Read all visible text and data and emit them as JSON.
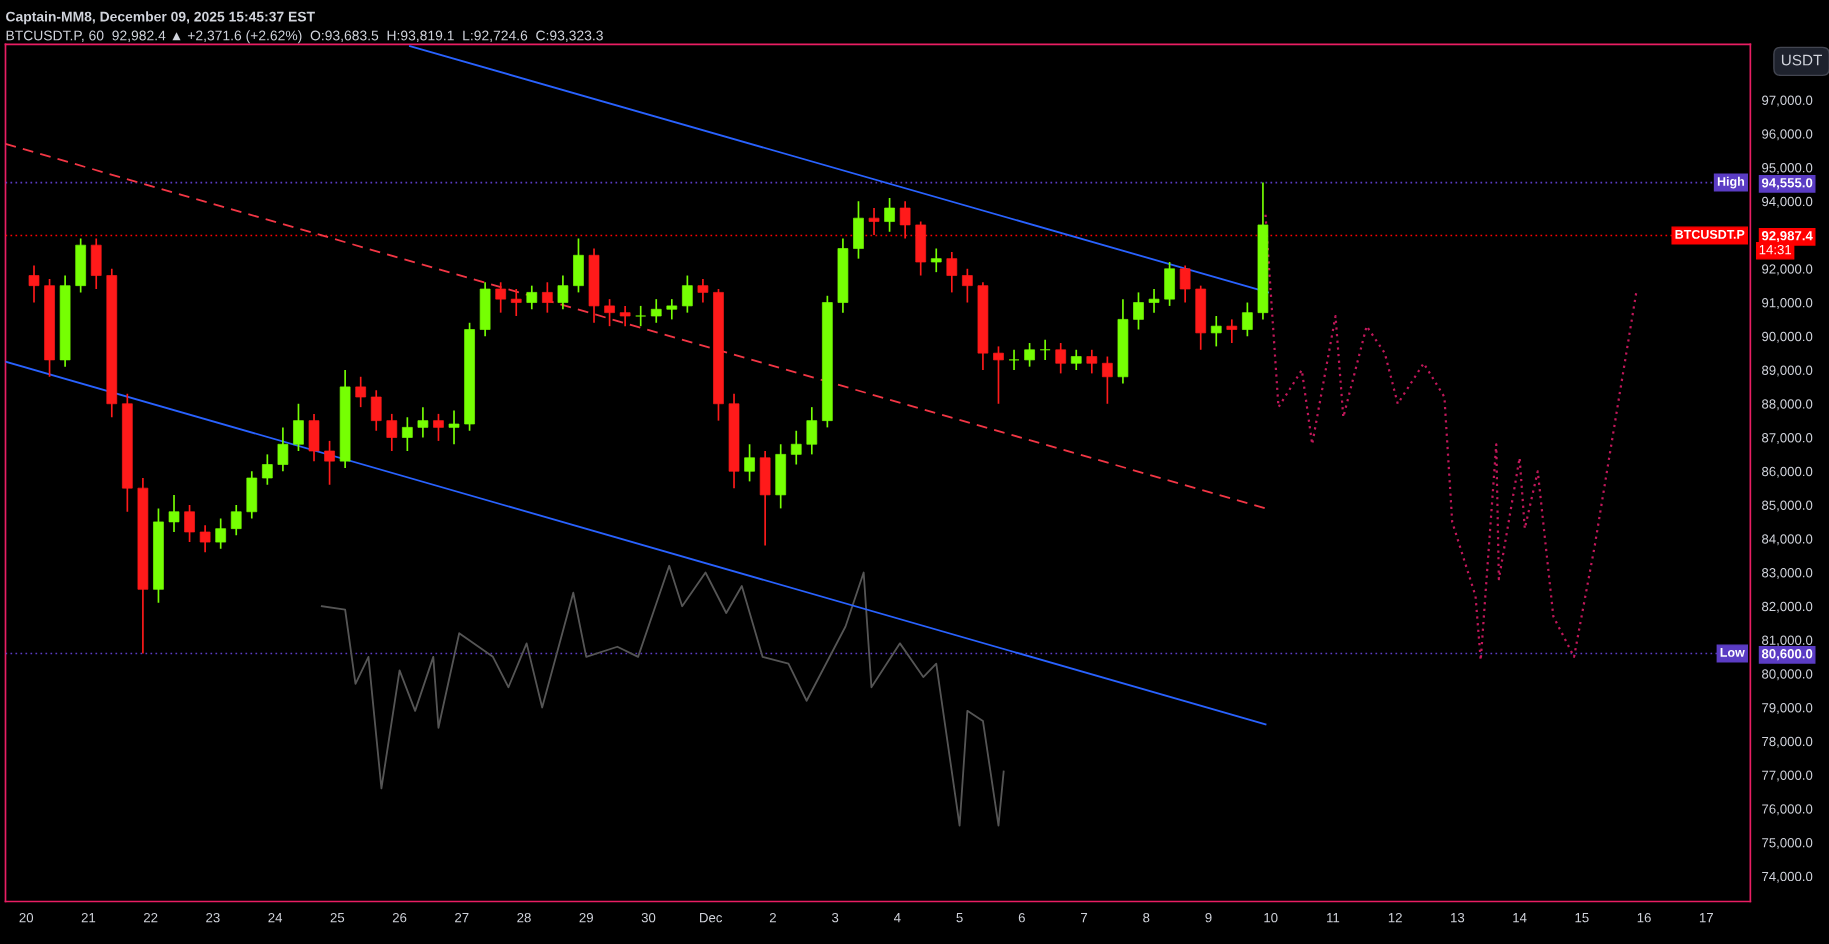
{
  "chart_data": {
    "type": "candlestick",
    "title": "Captain-MM8, December 09, 2025 15:45:37 EST",
    "subtitle": "BTCUSDT.P, 60  92,982.4 ▲ +2,371.6 (+2.62%)  O:93,683.5  H:93,819.1  L:92,724.6  C:93,323.3",
    "ylabel": "USDT",
    "x": [
      "2025-11-20T03:00",
      "2025-11-20T09:00",
      "2025-11-20T15:00",
      "2025-11-20T21:00",
      "2025-11-21T03:00",
      "2025-11-21T09:00",
      "2025-11-21T15:00",
      "2025-11-21T21:00",
      "2025-11-22T03:00",
      "2025-11-22T09:00",
      "2025-11-22T15:00",
      "2025-11-22T21:00",
      "2025-11-23T03:00",
      "2025-11-23T09:00",
      "2025-11-23T15:00",
      "2025-11-23T21:00",
      "2025-11-24T03:00",
      "2025-11-24T09:00",
      "2025-11-24T15:00",
      "2025-11-24T21:00",
      "2025-11-25T03:00",
      "2025-11-25T09:00",
      "2025-11-25T15:00",
      "2025-11-25T21:00",
      "2025-11-26T03:00",
      "2025-11-26T09:00",
      "2025-11-26T15:00",
      "2025-11-26T21:00",
      "2025-11-27T03:00",
      "2025-11-27T09:00",
      "2025-11-27T15:00",
      "2025-11-27T21:00",
      "2025-11-28T03:00",
      "2025-11-28T09:00",
      "2025-11-28T15:00",
      "2025-11-28T21:00",
      "2025-11-29T03:00",
      "2025-11-29T09:00",
      "2025-11-29T15:00",
      "2025-11-29T21:00",
      "2025-11-30T03:00",
      "2025-11-30T09:00",
      "2025-11-30T15:00",
      "2025-11-30T21:00",
      "2025-12-01T03:00",
      "2025-12-01T09:00",
      "2025-12-01T15:00",
      "2025-12-01T21:00",
      "2025-12-02T03:00",
      "2025-12-02T09:00",
      "2025-12-02T15:00",
      "2025-12-02T21:00",
      "2025-12-03T03:00",
      "2025-12-03T09:00",
      "2025-12-03T15:00",
      "2025-12-03T21:00",
      "2025-12-04T03:00",
      "2025-12-04T09:00",
      "2025-12-04T15:00",
      "2025-12-04T21:00",
      "2025-12-05T03:00",
      "2025-12-05T09:00",
      "2025-12-05T15:00",
      "2025-12-05T21:00",
      "2025-12-06T03:00",
      "2025-12-06T09:00",
      "2025-12-06T15:00",
      "2025-12-06T21:00",
      "2025-12-07T03:00",
      "2025-12-07T09:00",
      "2025-12-07T15:00",
      "2025-12-07T21:00",
      "2025-12-08T03:00",
      "2025-12-08T09:00",
      "2025-12-08T15:00",
      "2025-12-08T21:00",
      "2025-12-09T03:00",
      "2025-12-09T09:00",
      "2025-12-09T15:00",
      "2025-12-09T21:00"
    ],
    "ohlc": [
      [
        91800,
        92100,
        91000,
        91500
      ],
      [
        91500,
        91700,
        88800,
        89300
      ],
      [
        89300,
        91800,
        89100,
        91500
      ],
      [
        91500,
        92900,
        91300,
        92700
      ],
      [
        92700,
        92900,
        91400,
        91800
      ],
      [
        91800,
        92000,
        87600,
        88000
      ],
      [
        88000,
        88300,
        84800,
        85500
      ],
      [
        85500,
        85800,
        80600,
        82500
      ],
      [
        82500,
        84900,
        82100,
        84500
      ],
      [
        84500,
        85300,
        84200,
        84800
      ],
      [
        84800,
        85000,
        83900,
        84200
      ],
      [
        84200,
        84400,
        83600,
        83900
      ],
      [
        83900,
        84600,
        83700,
        84300
      ],
      [
        84300,
        85000,
        84100,
        84800
      ],
      [
        84800,
        86000,
        84600,
        85800
      ],
      [
        85800,
        86500,
        85600,
        86200
      ],
      [
        86200,
        87300,
        86000,
        86800
      ],
      [
        86800,
        88000,
        86600,
        87500
      ],
      [
        87500,
        87700,
        86300,
        86600
      ],
      [
        86600,
        86900,
        85600,
        86300
      ],
      [
        86300,
        89000,
        86100,
        88500
      ],
      [
        88500,
        88800,
        87900,
        88200
      ],
      [
        88200,
        88400,
        87200,
        87500
      ],
      [
        87500,
        87700,
        86600,
        87000
      ],
      [
        87000,
        87600,
        86600,
        87300
      ],
      [
        87300,
        87900,
        87000,
        87500
      ],
      [
        87500,
        87700,
        86900,
        87300
      ],
      [
        87300,
        87800,
        86800,
        87400
      ],
      [
        87400,
        90400,
        87200,
        90200
      ],
      [
        90200,
        91600,
        90000,
        91400
      ],
      [
        91400,
        91600,
        90700,
        91100
      ],
      [
        91100,
        91400,
        90600,
        91000
      ],
      [
        91000,
        91500,
        90800,
        91300
      ],
      [
        91300,
        91600,
        90700,
        91000
      ],
      [
        91000,
        91800,
        90800,
        91500
      ],
      [
        91500,
        92900,
        91300,
        92400
      ],
      [
        92400,
        92600,
        90400,
        90900
      ],
      [
        90900,
        91100,
        90300,
        90700
      ],
      [
        90700,
        90900,
        90300,
        90600
      ],
      [
        90600,
        90900,
        90300,
        90600
      ],
      [
        90600,
        91100,
        90400,
        90800
      ],
      [
        90800,
        91100,
        90500,
        90900
      ],
      [
        90900,
        91800,
        90700,
        91500
      ],
      [
        91500,
        91700,
        91000,
        91300
      ],
      [
        91300,
        91400,
        87500,
        88000
      ],
      [
        88000,
        88300,
        85500,
        86000
      ],
      [
        86000,
        86800,
        85700,
        86400
      ],
      [
        86400,
        86600,
        83800,
        85300
      ],
      [
        85300,
        86800,
        84900,
        86500
      ],
      [
        86500,
        87200,
        86200,
        86800
      ],
      [
        86800,
        87900,
        86500,
        87500
      ],
      [
        87500,
        91200,
        87300,
        91000
      ],
      [
        91000,
        92900,
        90700,
        92600
      ],
      [
        92600,
        94000,
        92300,
        93500
      ],
      [
        93500,
        93800,
        93000,
        93400
      ],
      [
        93400,
        94100,
        93100,
        93800
      ],
      [
        93800,
        94000,
        92900,
        93300
      ],
      [
        93300,
        93400,
        91800,
        92200
      ],
      [
        92200,
        92600,
        91900,
        92300
      ],
      [
        92300,
        92500,
        91300,
        91800
      ],
      [
        91800,
        92000,
        91000,
        91500
      ],
      [
        91500,
        91600,
        89000,
        89500
      ],
      [
        89500,
        89700,
        88000,
        89300
      ],
      [
        89300,
        89600,
        89000,
        89300
      ],
      [
        89300,
        89800,
        89100,
        89600
      ],
      [
        89600,
        89900,
        89300,
        89600
      ],
      [
        89600,
        89800,
        88900,
        89200
      ],
      [
        89200,
        89600,
        89000,
        89400
      ],
      [
        89400,
        89600,
        88900,
        89200
      ],
      [
        89200,
        89400,
        88000,
        88800
      ],
      [
        88800,
        91100,
        88600,
        90500
      ],
      [
        90500,
        91300,
        90200,
        91000
      ],
      [
        91000,
        91400,
        90700,
        91100
      ],
      [
        91100,
        92200,
        90900,
        92000
      ],
      [
        92000,
        92100,
        91000,
        91400
      ],
      [
        91400,
        91500,
        89600,
        90100
      ],
      [
        90100,
        90600,
        89700,
        90300
      ],
      [
        90300,
        90500,
        89800,
        90200
      ],
      [
        90200,
        91000,
        90000,
        90700
      ],
      [
        90700,
        94555,
        90500,
        93300
      ]
    ],
    "colors": [
      "#ff1a1a",
      "#ff1a1a",
      "#76ff03",
      "#76ff03",
      "#ff1a1a",
      "#ff1a1a",
      "#ff1a1a",
      "#ff1a1a",
      "#76ff03",
      "#76ff03",
      "#ff1a1a",
      "#ff1a1a",
      "#76ff03",
      "#76ff03",
      "#76ff03",
      "#76ff03",
      "#76ff03",
      "#76ff03",
      "#ff1a1a",
      "#ff1a1a",
      "#76ff03",
      "#ff1a1a",
      "#ff1a1a",
      "#ff1a1a",
      "#76ff03",
      "#76ff03",
      "#ff1a1a",
      "#76ff03",
      "#76ff03",
      "#76ff03",
      "#ff1a1a",
      "#ff1a1a",
      "#76ff03",
      "#ff1a1a",
      "#76ff03",
      "#76ff03",
      "#ff1a1a",
      "#ff1a1a",
      "#ff1a1a",
      "#76ff03",
      "#76ff03",
      "#76ff03",
      "#76ff03",
      "#ff1a1a",
      "#ff1a1a",
      "#ff1a1a",
      "#76ff03",
      "#ff1a1a",
      "#76ff03",
      "#76ff03",
      "#76ff03",
      "#76ff03",
      "#76ff03",
      "#76ff03",
      "#ff1a1a",
      "#76ff03",
      "#ff1a1a",
      "#ff1a1a",
      "#76ff03",
      "#ff1a1a",
      "#ff1a1a",
      "#ff1a1a",
      "#ff1a1a",
      "#76ff03",
      "#76ff03",
      "#76ff03",
      "#ff1a1a",
      "#76ff03",
      "#ff1a1a",
      "#ff1a1a",
      "#76ff03",
      "#76ff03",
      "#76ff03",
      "#76ff03",
      "#ff1a1a",
      "#ff1a1a",
      "#76ff03",
      "#ff1a1a",
      "#76ff03",
      "#76ff03"
    ],
    "series": [
      {
        "type": "line",
        "color": "#555555",
        "line_style": "solid",
        "x": [
          "2025-11-24T18:00",
          "2025-11-25T03:00",
          "2025-11-25T07:00",
          "2025-11-25T12:00",
          "2025-11-25T17:00",
          "2025-11-26T00:00",
          "2025-11-26T06:00",
          "2025-11-26T13:00",
          "2025-11-26T15:00",
          "2025-11-26T23:00",
          "2025-11-27T12:00",
          "2025-11-27T18:00",
          "2025-11-28T01:00",
          "2025-11-28T07:00",
          "2025-11-28T19:00",
          "2025-11-29T00:00",
          "2025-11-29T12:00",
          "2025-11-29T20:00",
          "2025-11-30T08:00",
          "2025-11-30T13:00",
          "2025-11-30T22:00",
          "2025-12-01T06:00",
          "2025-12-01T12:00",
          "2025-12-01T20:00",
          "2025-12-02T06:00",
          "2025-12-02T13:00",
          "2025-12-03T04:00",
          "2025-12-03T11:00",
          "2025-12-03T14:00",
          "2025-12-04T01:00",
          "2025-12-04T10:00",
          "2025-12-04T15:00",
          "2025-12-05T00:00",
          "2025-12-05T03:00",
          "2025-12-05T09:00",
          "2025-12-05T15:00",
          "2025-12-05T17:00"
        ],
        "values": [
          82000,
          81900,
          79700,
          80500,
          76600,
          80100,
          78900,
          80500,
          78400,
          81200,
          80500,
          79600,
          80900,
          79000,
          82400,
          80500,
          80800,
          80500,
          83200,
          82000,
          83000,
          81800,
          82600,
          80500,
          80300,
          79200,
          81400,
          83000,
          79600,
          80900,
          79900,
          80300,
          75500,
          78900,
          78600,
          75500,
          77100
        ]
      },
      {
        "type": "line",
        "color": "#c2185b",
        "line_style": "dotted",
        "x": [
          "2025-12-09T22:00",
          "2025-12-10T03:00",
          "2025-12-10T12:00",
          "2025-12-10T16:00",
          "2025-12-11T01:00",
          "2025-12-11T04:00",
          "2025-12-11T13:00",
          "2025-12-11T20:00",
          "2025-12-12T01:00",
          "2025-12-12T11:00",
          "2025-12-12T19:00",
          "2025-12-12T22:00",
          "2025-12-13T07:00",
          "2025-12-13T09:00",
          "2025-12-13T15:00",
          "2025-12-13T16:00",
          "2025-12-14T00:00",
          "2025-12-14T02:00",
          "2025-12-14T07:00",
          "2025-12-14T13:00",
          "2025-12-14T21:00",
          "2025-12-15T05:00",
          "2025-12-15T21:00"
        ],
        "values": [
          93600,
          87900,
          89000,
          86800,
          90600,
          87600,
          90300,
          89500,
          88000,
          89200,
          88200,
          84500,
          82300,
          80400,
          86800,
          82800,
          86400,
          84300,
          86000,
          81700,
          80500,
          83800,
          91300
        ]
      },
      {
        "type": "line",
        "color": "#2962ff",
        "line_style": "solid",
        "x": [
          "2025-11-26T04:00",
          "2025-12-09T23:00"
        ],
        "values": [
          98600,
          91300
        ]
      },
      {
        "type": "line",
        "color": "#2962ff",
        "line_style": "solid",
        "x": [
          "2025-11-19T16:00",
          "2025-12-09T22:00"
        ],
        "values": [
          89250,
          78500
        ]
      },
      {
        "type": "line",
        "color": "#f23645",
        "line_style": "dashed",
        "x": [
          "2025-11-19T16:00",
          "2025-12-09T22:00"
        ],
        "values": [
          95700,
          84900
        ]
      }
    ],
    "ref_lines": [
      {
        "axis": "y",
        "value": 94555,
        "label": "High",
        "color": "#5b3cc4",
        "line_style": "dotted"
      },
      {
        "axis": "y",
        "value": 80600,
        "label": "Low",
        "color": "#5b3cc4",
        "line_style": "dotted"
      },
      {
        "axis": "y",
        "value": 92987.4,
        "label": "BTCUSDT.P",
        "color": "#ff0000",
        "line_style": "dotted"
      }
    ],
    "annotations": [
      "14:31"
    ],
    "xlim": [
      "2025-11-19T16:00",
      "2025-12-17T17:00"
    ],
    "xticks": [
      {
        "value": "2025-11-20",
        "label": "20"
      },
      {
        "value": "2025-11-21",
        "label": "21"
      },
      {
        "value": "2025-11-22",
        "label": "22"
      },
      {
        "value": "2025-11-23",
        "label": "23"
      },
      {
        "value": "2025-11-24",
        "label": "24"
      },
      {
        "value": "2025-11-25",
        "label": "25"
      },
      {
        "value": "2025-11-26",
        "label": "26"
      },
      {
        "value": "2025-11-27",
        "label": "27"
      },
      {
        "value": "2025-11-28",
        "label": "28"
      },
      {
        "value": "2025-11-29",
        "label": "29"
      },
      {
        "value": "2025-11-30",
        "label": "30"
      },
      {
        "value": "2025-12-01",
        "label": "Dec"
      },
      {
        "value": "2025-12-02",
        "label": "2"
      },
      {
        "value": "2025-12-03",
        "label": "3"
      },
      {
        "value": "2025-12-04",
        "label": "4"
      },
      {
        "value": "2025-12-05",
        "label": "5"
      },
      {
        "value": "2025-12-06",
        "label": "6"
      },
      {
        "value": "2025-12-07",
        "label": "7"
      },
      {
        "value": "2025-12-08",
        "label": "8"
      },
      {
        "value": "2025-12-09",
        "label": "9"
      },
      {
        "value": "2025-12-10",
        "label": "10"
      },
      {
        "value": "2025-12-11",
        "label": "11"
      },
      {
        "value": "2025-12-12",
        "label": "12"
      },
      {
        "value": "2025-12-13",
        "label": "13"
      },
      {
        "value": "2025-12-14",
        "label": "14"
      },
      {
        "value": "2025-12-15",
        "label": "15"
      },
      {
        "value": "2025-12-16",
        "label": "16"
      },
      {
        "value": "2025-12-17",
        "label": "17"
      }
    ],
    "ylim": [
      73250,
      98650
    ],
    "yticks": [
      {
        "value": 74000,
        "label": "74,000.0"
      },
      {
        "value": 75000,
        "label": "75,000.0"
      },
      {
        "value": 76000,
        "label": "76,000.0"
      },
      {
        "value": 77000,
        "label": "77,000.0"
      },
      {
        "value": 78000,
        "label": "78,000.0"
      },
      {
        "value": 79000,
        "label": "79,000.0"
      },
      {
        "value": 80000,
        "label": "80,000.0"
      },
      {
        "value": 81000,
        "label": "81,000.0"
      },
      {
        "value": 82000,
        "label": "82,000.0"
      },
      {
        "value": 83000,
        "label": "83,000.0"
      },
      {
        "value": 84000,
        "label": "84,000.0"
      },
      {
        "value": 85000,
        "label": "85,000.0"
      },
      {
        "value": 86000,
        "label": "86,000.0"
      },
      {
        "value": 87000,
        "label": "87,000.0"
      },
      {
        "value": 88000,
        "label": "88,000.0"
      },
      {
        "value": 89000,
        "label": "89,000.0"
      },
      {
        "value": 90000,
        "label": "90,000.0"
      },
      {
        "value": 91000,
        "label": "91,000.0"
      },
      {
        "value": 92000,
        "label": "92,000.0"
      },
      {
        "value": 92987.4,
        "label": "92,987.4"
      },
      {
        "value": 94000,
        "label": "94,000.0"
      },
      {
        "value": 94555,
        "label": "94,555.0"
      },
      {
        "value": 80600,
        "label": "80,600.0"
      },
      {
        "value": 95000,
        "label": "95,000.0"
      },
      {
        "value": 96000,
        "label": "96,000.0"
      },
      {
        "value": 97000,
        "label": "97,000.0"
      }
    ],
    "grid": false,
    "legend": false
  }
}
